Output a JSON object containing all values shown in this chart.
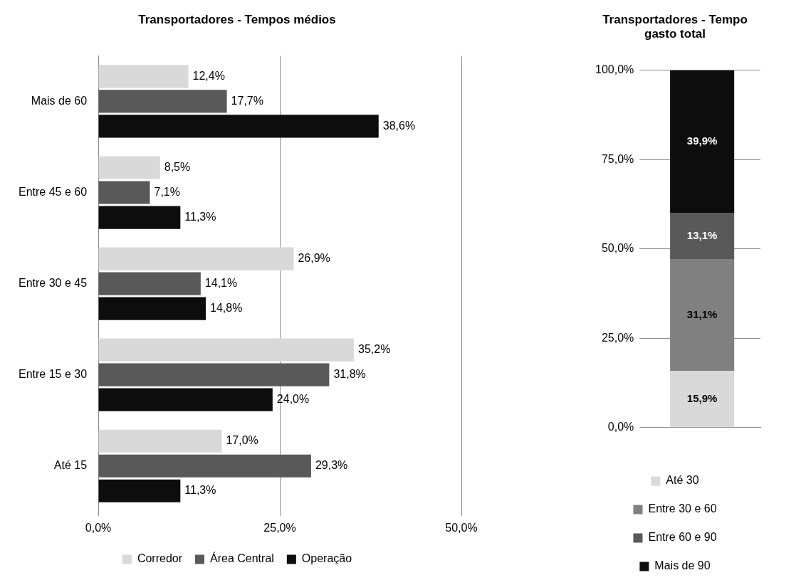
{
  "chart_data": [
    {
      "type": "bar",
      "title": "Transportadores - Tempos médios",
      "orientation": "horizontal",
      "categories": [
        "Mais de 60",
        "Entre 45 e 60",
        "Entre 30 e 45",
        "Entre 15 e 30",
        "Até 15"
      ],
      "xlim": [
        0,
        50
      ],
      "xticks": [
        {
          "value": 0,
          "label": "0,0%"
        },
        {
          "value": 25,
          "label": "25,0%"
        },
        {
          "value": 50,
          "label": "50,0%"
        }
      ],
      "grid": "x",
      "legend": "bottom",
      "series": [
        {
          "name": "Corredor",
          "color": "#d9d9d9",
          "values": [
            12.4,
            8.5,
            26.9,
            35.2,
            17.0
          ],
          "value_labels": [
            "12,4%",
            "8,5%",
            "26,9%",
            "35,2%",
            "17,0%"
          ]
        },
        {
          "name": "Área Central",
          "color": "#595959",
          "values": [
            17.7,
            7.1,
            14.1,
            31.8,
            29.3
          ],
          "value_labels": [
            "17,7%",
            "7,1%",
            "14,1%",
            "31,8%",
            "29,3%"
          ]
        },
        {
          "name": "Operação",
          "color": "#0d0d0d",
          "values": [
            38.6,
            11.3,
            14.8,
            24.0,
            11.3
          ],
          "value_labels": [
            "38,6%",
            "11,3%",
            "14,8%",
            "24,0%",
            "11,3%"
          ]
        }
      ]
    },
    {
      "type": "bar",
      "title": "Transportadores - Tempo gasto total",
      "stacked": true,
      "categories": [
        null
      ],
      "ylim": [
        0,
        100
      ],
      "yticks": [
        {
          "value": 0,
          "label": "0,0%"
        },
        {
          "value": 25,
          "label": "25,0%"
        },
        {
          "value": 50,
          "label": "50,0%"
        },
        {
          "value": 75,
          "label": "75,0%"
        },
        {
          "value": 100,
          "label": "100,0%"
        }
      ],
      "grid": "y",
      "legend": "bottom",
      "series": [
        {
          "name": "Até 30",
          "color": "#d9d9d9",
          "values": [
            15.9
          ],
          "value_labels": [
            "15,9%"
          ]
        },
        {
          "name": "Entre 30 e 60",
          "color": "#808080",
          "values": [
            31.1
          ],
          "value_labels": [
            "31,1%"
          ]
        },
        {
          "name": "Entre 60 e 90",
          "color": "#595959",
          "values": [
            13.1
          ],
          "value_labels": [
            "13,1%"
          ]
        },
        {
          "name": "Mais de 90",
          "color": "#0d0d0d",
          "values": [
            39.9
          ],
          "value_labels": [
            "39,9%"
          ]
        }
      ]
    }
  ]
}
